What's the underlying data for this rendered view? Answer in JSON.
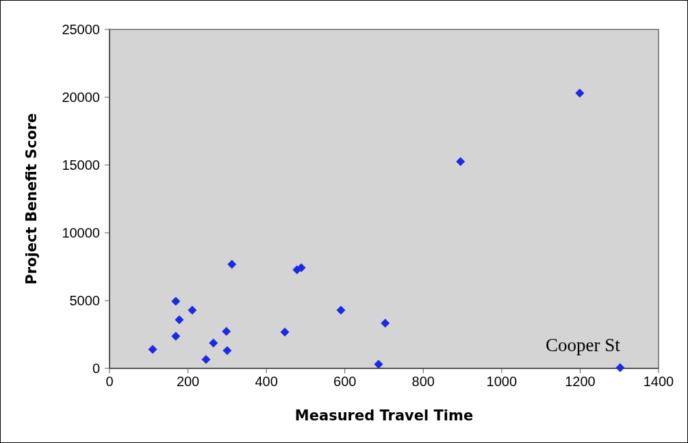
{
  "chart_data": {
    "type": "scatter",
    "xlabel": "Measured Travel Time",
    "ylabel": "Project Benefit Score",
    "x": [
      110,
      169,
      169,
      178,
      211,
      246,
      265,
      298,
      300,
      312,
      447,
      478,
      489,
      590,
      686,
      703,
      895,
      1199,
      1302
    ],
    "series": [
      {
        "color": "#1a2be6",
        "values": [
          1400,
          4950,
          2370,
          3590,
          4290,
          660,
          1870,
          2730,
          1310,
          7680,
          2680,
          7270,
          7420,
          4290,
          300,
          3330,
          15250,
          20300,
          50
        ]
      }
    ],
    "xlim": [
      0,
      1400
    ],
    "xticks": [
      0,
      200,
      400,
      600,
      800,
      1000,
      1200,
      1400
    ],
    "ylim": [
      0,
      25000
    ],
    "yticks": [
      0,
      5000,
      10000,
      15000,
      20000,
      25000
    ],
    "marker": "diamond",
    "grid": false,
    "annotations": [
      {
        "text": "Cooper St",
        "x": 1302,
        "y": 50
      }
    ]
  }
}
